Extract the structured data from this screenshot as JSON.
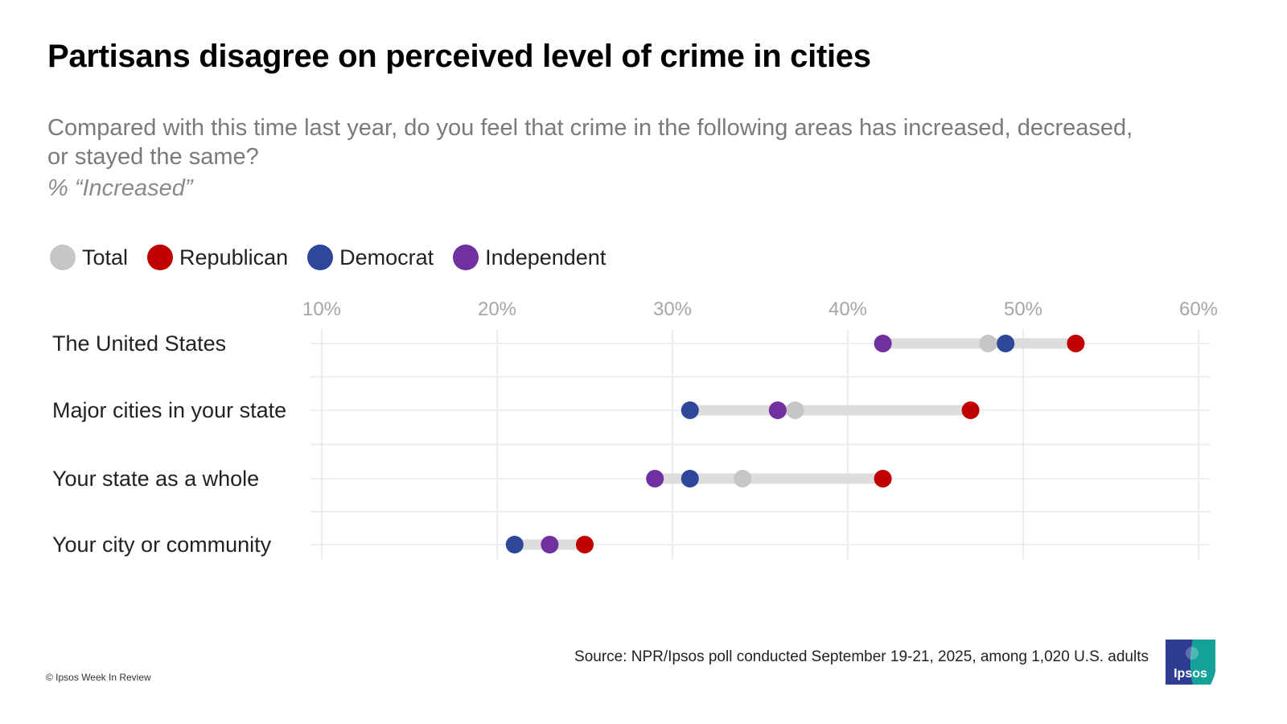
{
  "title": "Partisans disagree on perceived level of crime in cities",
  "subtitle": "Compared with this time last year, do you feel that crime in the following areas has increased, decreased, or stayed the same?",
  "unit_label": "% “Increased”",
  "footer": {
    "copyright": "© Ipsos Week In Review",
    "source": "Source: NPR/Ipsos poll conducted  September 19-21, 2025, among 1,020 U.S. adults",
    "logo_text": "Ipsos",
    "logo_colors": {
      "left": "#2e3c92",
      "right": "#14a19a"
    }
  },
  "chart_data": {
    "type": "scatter",
    "subtype": "dot-plot / dumbbell",
    "title": "Partisans disagree on perceived level of crime in cities",
    "xlabel": "",
    "ylabel": "",
    "xlim": [
      10,
      60
    ],
    "x_ticks": [
      10,
      20,
      30,
      40,
      50,
      60
    ],
    "x_tick_labels": [
      "10%",
      "20%",
      "30%",
      "40%",
      "50%",
      "60%"
    ],
    "grid": true,
    "legend_position": "top-left",
    "categories": [
      "The United States",
      "Major cities in your state",
      "Your state as a whole",
      "Your city or community"
    ],
    "series": [
      {
        "name": "Total",
        "color": "#c6c6c6",
        "values": [
          48,
          37,
          34,
          23
        ]
      },
      {
        "name": "Republican",
        "color": "#c00000",
        "values": [
          53,
          47,
          42,
          25
        ]
      },
      {
        "name": "Democrat",
        "color": "#2e479b",
        "values": [
          49,
          31,
          31,
          21
        ]
      },
      {
        "name": "Independent",
        "color": "#7030a0",
        "values": [
          42,
          36,
          29,
          23
        ]
      }
    ],
    "connector_color": "#dddddd",
    "tick_label_color": "#a6a6a6"
  }
}
